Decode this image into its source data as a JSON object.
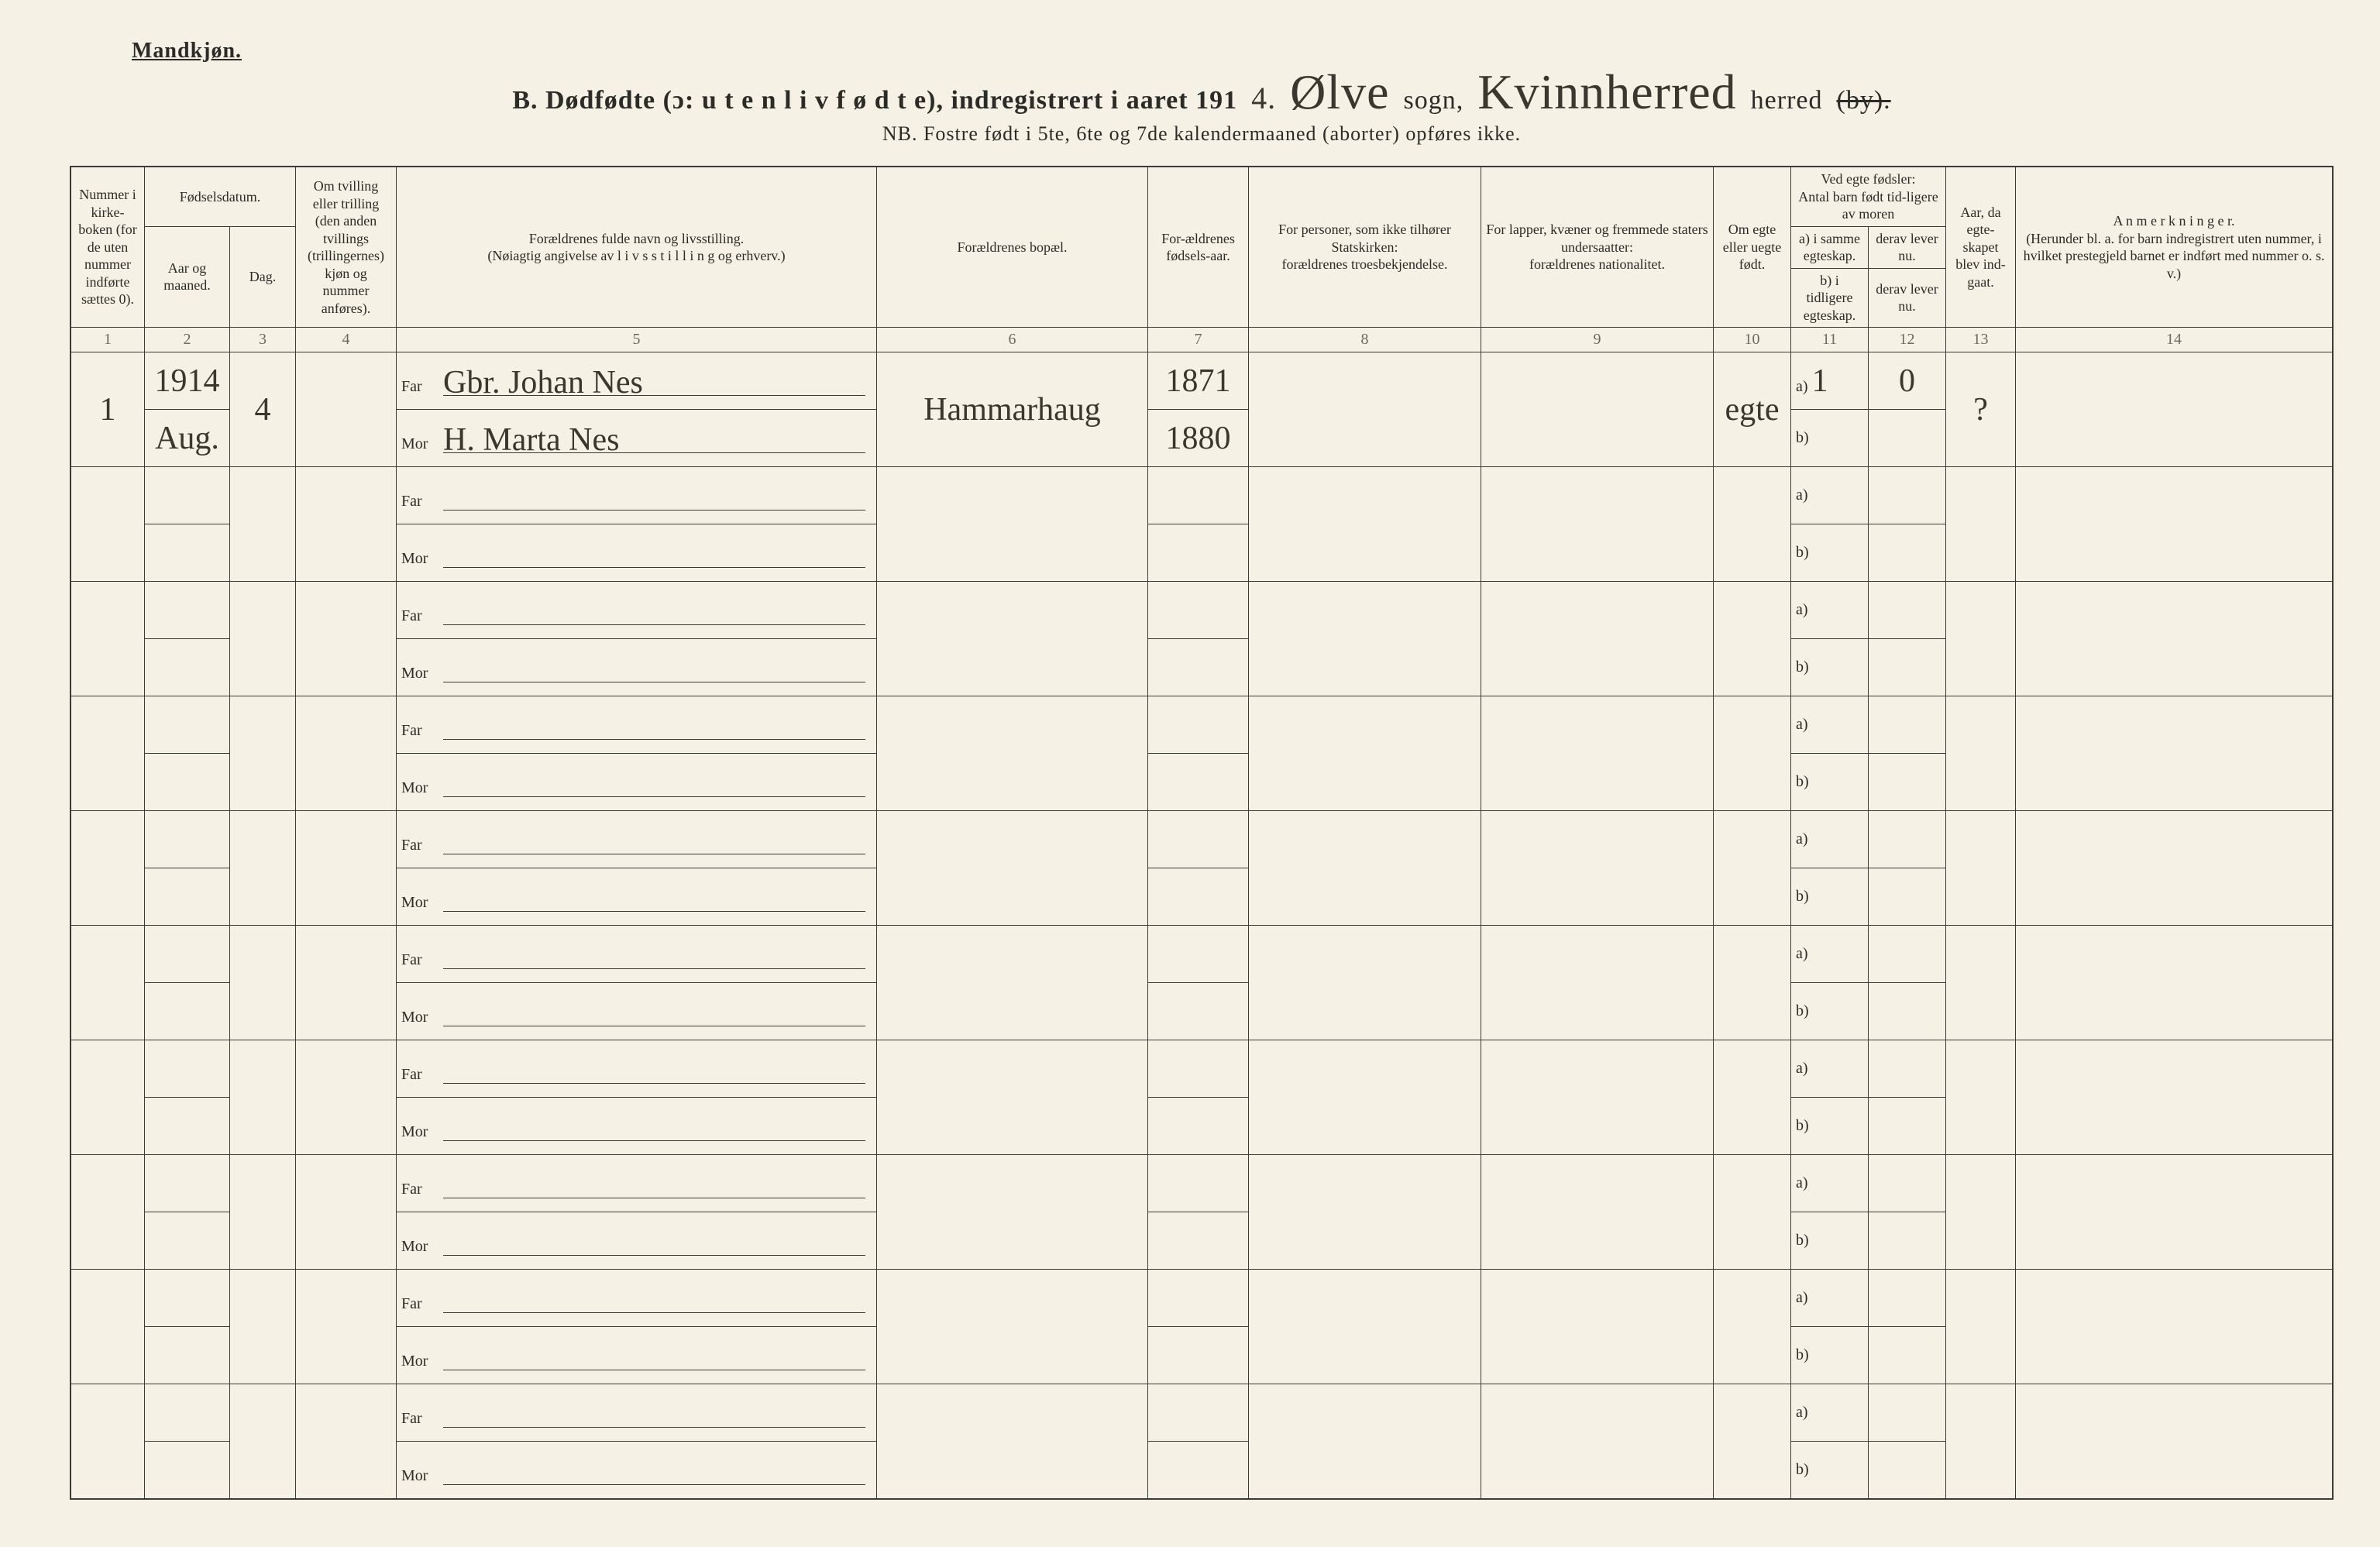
{
  "colors": {
    "paper": "#f5f1e4",
    "ink": "#2b2b28",
    "line": "#3a3a36",
    "faint": "#6a6a62"
  },
  "page": {
    "gender_label": "Mandkjøn.",
    "title_lead": "B.  Dødfødte (ɔ: u t e n  l i v  f ø d t e),  indregistrert i aaret 191",
    "year_suffix_hw": "4.",
    "sogn_hw": "Ølve",
    "sogn_label": "sogn,",
    "herred_hw": "Kvinnherred",
    "herred_label": "herred",
    "by_struck": "(by).",
    "nb": "NB.  Fostre født i 5te, 6te og 7de kalendermaaned (aborter) opføres ikke."
  },
  "headers": {
    "c1": "Nummer i kirke-boken (for de uten nummer indførte sættes 0).",
    "c2_top": "Fødselsdatum.",
    "c2": "Aar og maaned.",
    "c3": "Dag.",
    "c4": "Om tvilling eller trilling (den anden tvillings (trillingernes) kjøn og nummer anføres).",
    "c5": "Forældrenes fulde navn og livsstilling.\n(Nøiagtig angivelse av l i v s s t i l l i n g og erhverv.)",
    "c6": "Forældrenes bopæl.",
    "c7": "For-ældrenes fødsels-aar.",
    "c8": "For personer, som ikke tilhører Statskirken:\nforældrenes troesbekjendelse.",
    "c9": "For lapper, kvæner og fremmede staters undersaatter:\nforældrenes nationalitet.",
    "c10": "Om egte eller uegte født.",
    "c11_top": "Ved egte fødsler:\nAntal barn født tid-ligere av moren",
    "c11": "a) i samme egteskap.",
    "c12_sub": "derav lever nu.",
    "c11b": "b) i tidligere egteskap.",
    "c12b_sub": "derav lever nu.",
    "c13": "Aar, da egte-skapet blev ind-gaat.",
    "c14": "A n m e r k n i n g e r.\n(Herunder bl. a. for barn indregistrert uten nummer, i hvilket prestegjeld barnet er indført med nummer o. s. v.)"
  },
  "colnums": [
    "1",
    "2",
    "3",
    "4",
    "5",
    "6",
    "7",
    "8",
    "9",
    "10",
    "11",
    "12",
    "13",
    "14"
  ],
  "labels": {
    "far": "Far",
    "mor": "Mor",
    "a": "a)",
    "b": "b)"
  },
  "rows": [
    {
      "num": "1",
      "year_month_top": "1914",
      "year_month_bot": "Aug.",
      "day": "4",
      "far": "Gbr. Johan Nes",
      "mor": "H. Marta Nes",
      "bopel": "Hammarhaug",
      "far_aar": "1871",
      "mor_aar": "1880",
      "c8": "",
      "c9": "",
      "egte": "egte",
      "a": "1",
      "a_lever": "0",
      "b": "",
      "b_lever": "",
      "aar_egte": "?",
      "anm": ""
    },
    {
      "blank": true
    },
    {
      "blank": true
    },
    {
      "blank": true
    },
    {
      "blank": true
    },
    {
      "blank": true
    },
    {
      "blank": true
    },
    {
      "blank": true
    },
    {
      "blank": true
    },
    {
      "blank": true
    }
  ]
}
